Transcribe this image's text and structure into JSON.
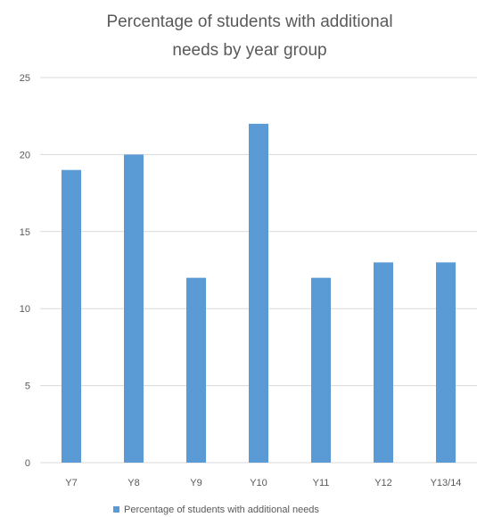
{
  "chart_data": {
    "type": "bar",
    "title": "Percentage of students with additional needs by year group",
    "title_lines": [
      "Percentage of students with additional",
      "needs by year group"
    ],
    "categories": [
      "Y7",
      "Y8",
      "Y9",
      "Y10",
      "Y11",
      "Y12",
      "Y13/14"
    ],
    "series": [
      {
        "name": "Percentage of students with additional needs",
        "values": [
          19,
          20,
          12,
          22,
          12,
          13,
          13
        ],
        "color": "#5b9bd5"
      }
    ],
    "xlabel": "",
    "ylabel": "",
    "ylim": [
      0,
      25
    ],
    "yticks": [
      "0",
      "5",
      "10",
      "15",
      "20",
      "25"
    ],
    "grid": true,
    "legend_position": "bottom"
  }
}
